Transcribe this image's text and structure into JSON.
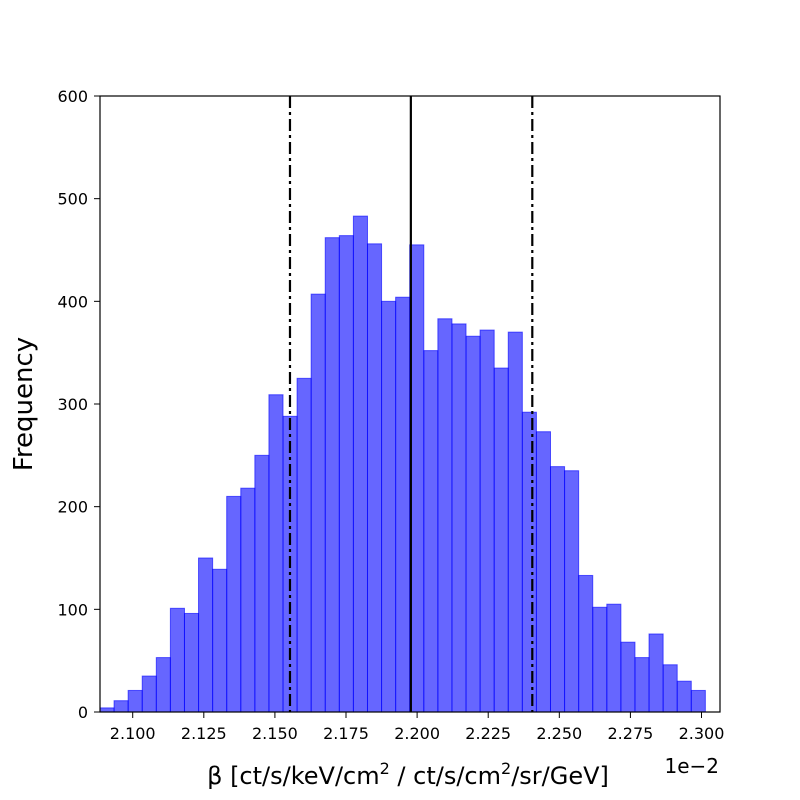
{
  "chart_data": {
    "type": "bar",
    "title": "",
    "xlabel": {
      "prefix": "β [ct/s/keV/cm",
      "sup1": "2",
      "middle": " / ct/s/cm",
      "sup2": "2",
      "suffix": "/sr/GeV]"
    },
    "x_offset_label": "1e−2",
    "ylabel": "Frequency",
    "xlim": [
      2.0885,
      2.3065
    ],
    "ylim": [
      0,
      600
    ],
    "x_ticks": [
      2.1,
      2.125,
      2.15,
      2.175,
      2.2,
      2.225,
      2.25,
      2.275,
      2.3
    ],
    "x_tick_labels": [
      "2.100",
      "2.125",
      "2.150",
      "2.175",
      "2.200",
      "2.225",
      "2.250",
      "2.275",
      "2.300"
    ],
    "y_ticks": [
      0,
      100,
      200,
      300,
      400,
      500,
      600
    ],
    "y_tick_labels": [
      "0",
      "100",
      "200",
      "300",
      "400",
      "500",
      "600"
    ],
    "bin_start": 2.0885,
    "bin_width": 0.00495,
    "values": [
      4,
      11,
      21,
      35,
      53,
      101,
      96,
      150,
      139,
      210,
      218,
      250,
      309,
      288,
      325,
      407,
      462,
      464,
      483,
      456,
      400,
      404,
      455,
      352,
      383,
      378,
      366,
      372,
      335,
      370,
      292,
      273,
      239,
      235,
      133,
      102,
      105,
      68,
      53,
      76,
      46,
      30,
      21
    ],
    "bar_color": "#0000ff",
    "bar_alpha": 0.6,
    "vlines": [
      {
        "x": 2.1553,
        "style": "dashdot"
      },
      {
        "x": 2.1978,
        "style": "solid"
      },
      {
        "x": 2.2405,
        "style": "dashdot"
      }
    ],
    "grid": false
  }
}
